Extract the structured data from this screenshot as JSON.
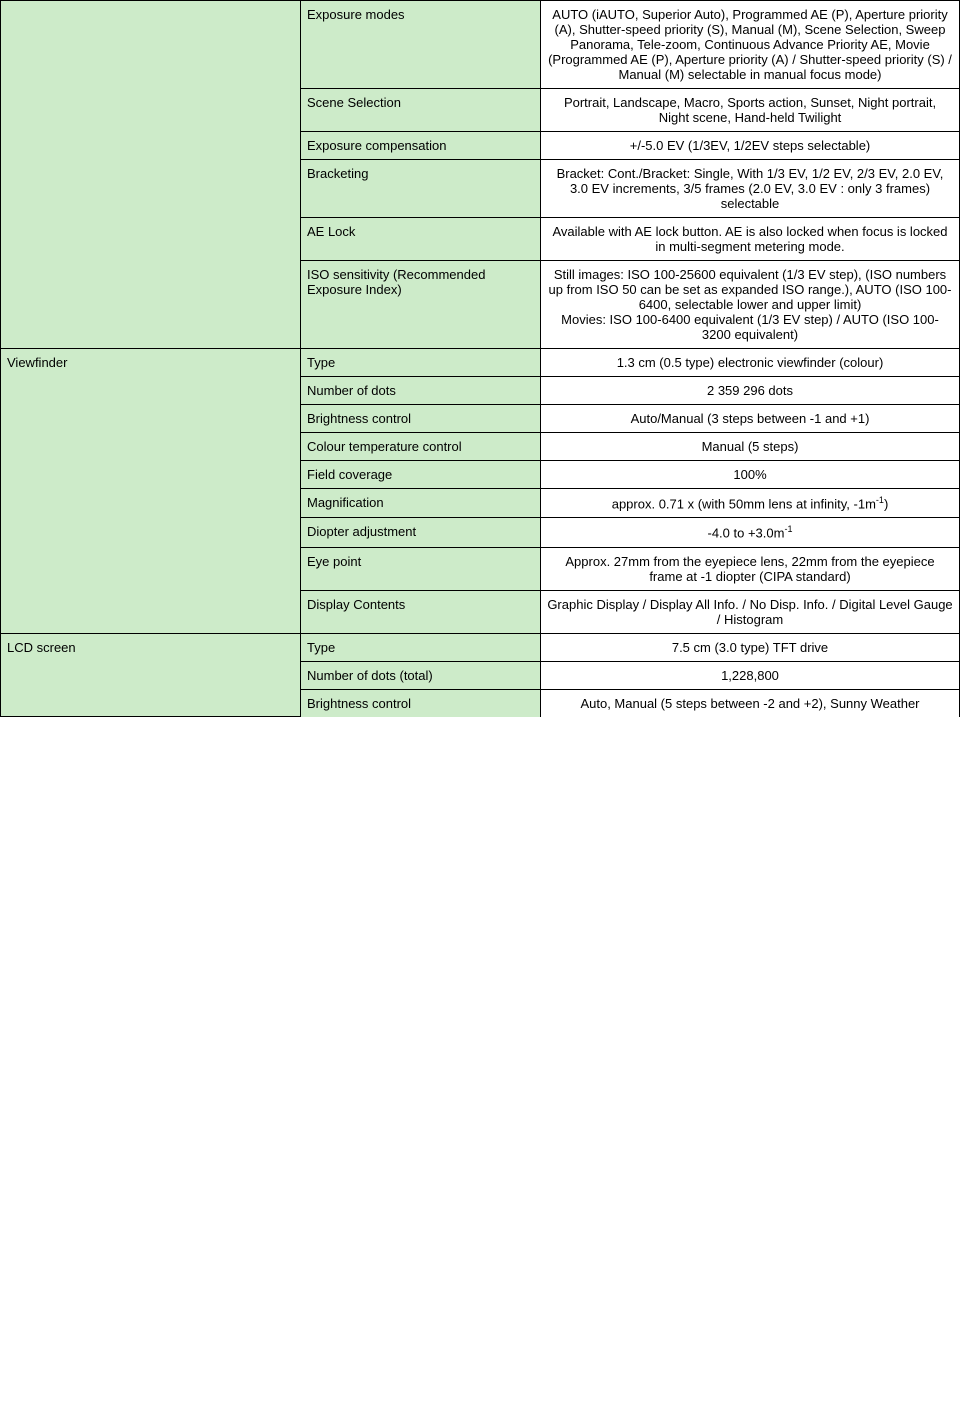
{
  "cat_exposure": "",
  "cat_viewfinder": "Viewfinder",
  "cat_lcd": "LCD screen",
  "rows": {
    "exposure_modes": {
      "label": "Exposure modes",
      "value": "AUTO (iAUTO, Superior Auto), Programmed AE (P), Aperture priority (A), Shutter-speed priority (S), Manual (M), Scene Selection, Sweep Panorama, Tele-zoom, Continuous Advance Priority AE, Movie (Programmed AE (P), Aperture priority (A) / Shutter-speed priority (S) / Manual (M) selectable in manual focus mode)"
    },
    "scene_selection": {
      "label": "Scene Selection",
      "value": "Portrait, Landscape, Macro, Sports action, Sunset, Night portrait, Night scene, Hand-held Twilight"
    },
    "exposure_comp": {
      "label": "Exposure compensation",
      "value": "+/-5.0 EV (1/3EV, 1/2EV steps selectable)"
    },
    "bracketing": {
      "label": "Bracketing",
      "value": "Bracket: Cont./Bracket: Single, With 1/3 EV, 1/2 EV, 2/3 EV, 2.0 EV, 3.0 EV increments, 3/5 frames (2.0 EV, 3.0 EV : only 3 frames) selectable"
    },
    "ae_lock": {
      "label": "AE Lock",
      "value": "Available with AE lock button. AE is also locked when focus is locked in multi-segment metering mode."
    },
    "iso": {
      "label": "ISO sensitivity (Recommended Exposure Index)",
      "value": "Still images: ISO 100-25600 equivalent (1/3 EV step), (ISO numbers up from ISO 50 can be set as expanded ISO range.), AUTO (ISO 100-6400, selectable lower and upper limit)\nMovies: ISO 100-6400 equivalent (1/3 EV step) / AUTO (ISO 100-3200 equivalent)"
    },
    "vf_type": {
      "label": "Type",
      "value": "1.3 cm (0.5 type) electronic viewfinder (colour)"
    },
    "vf_dots": {
      "label": "Number of dots",
      "value": "2 359 296 dots"
    },
    "vf_brightness": {
      "label": "Brightness control",
      "value": "Auto/Manual (3 steps between -1 and +1)"
    },
    "vf_colourtemp": {
      "label": "Colour temperature control",
      "value": "Manual (5 steps)"
    },
    "vf_field": {
      "label": "Field coverage",
      "value": "100%"
    },
    "vf_mag": {
      "label": "Magnification",
      "value_html": "approx. 0.71 x (with 50mm lens at infinity, -1m<sup>-1</sup>)"
    },
    "vf_diopter": {
      "label": "Diopter adjustment",
      "value_html": "-4.0 to +3.0m<sup>-1</sup>"
    },
    "vf_eyepoint": {
      "label": "Eye point",
      "value": "Approx. 27mm from the eyepiece lens, 22mm from the eyepiece frame at -1 diopter (CIPA standard)"
    },
    "vf_display": {
      "label": "Display Contents",
      "value": "Graphic Display / Display All Info. / No Disp. Info. / Digital Level Gauge / Histogram"
    },
    "lcd_type": {
      "label": "Type",
      "value": "7.5 cm (3.0 type) TFT drive"
    },
    "lcd_dots": {
      "label": "Number of dots (total)",
      "value": "1,228,800"
    },
    "lcd_brightness": {
      "label": "Brightness control",
      "value": "Auto, Manual (5 steps between -2 and +2), Sunny Weather"
    }
  }
}
